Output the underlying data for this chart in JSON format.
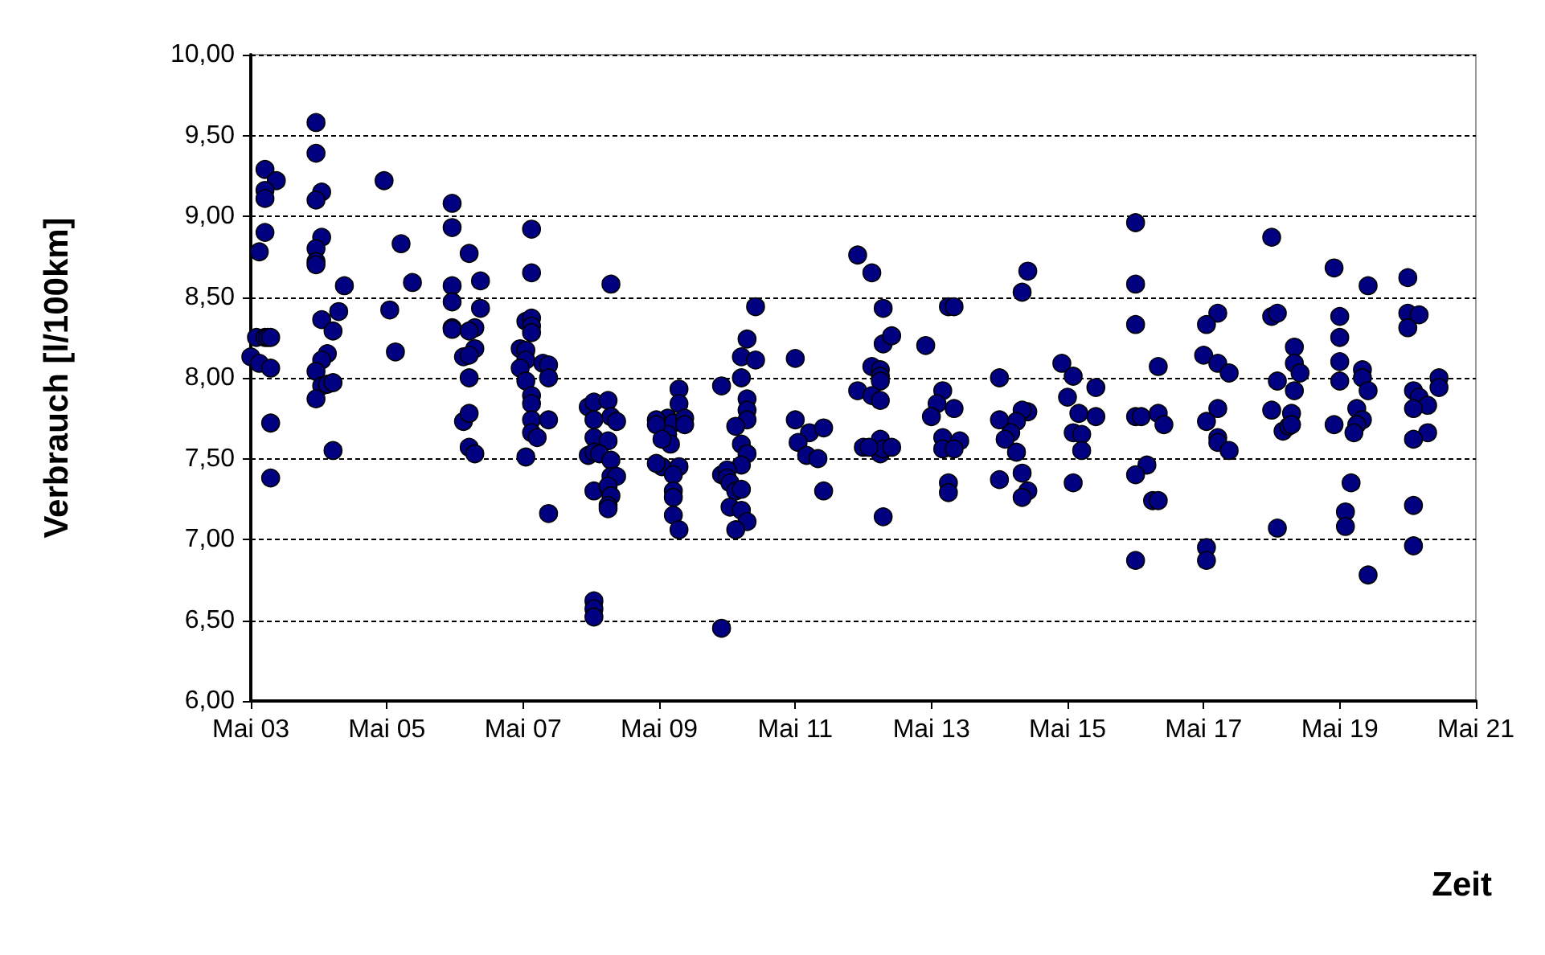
{
  "chart_data": {
    "type": "scatter",
    "xlabel": "Zeit",
    "ylabel": "Verbrauch [l/100km]",
    "marker": "circle",
    "grid": "y",
    "xlim": [
      "--05-03",
      "--05-21"
    ],
    "xticks": [
      {
        "value": "--05-03",
        "label": "Mai 03"
      },
      {
        "value": "--05-05",
        "label": "Mai 05"
      },
      {
        "value": "--05-07",
        "label": "Mai 07"
      },
      {
        "value": "--05-09",
        "label": "Mai 09"
      },
      {
        "value": "--05-11",
        "label": "Mai 11"
      },
      {
        "value": "--05-13",
        "label": "Mai 13"
      },
      {
        "value": "--05-15",
        "label": "Mai 15"
      },
      {
        "value": "--05-17",
        "label": "Mai 17"
      },
      {
        "value": "--05-19",
        "label": "Mai 19"
      },
      {
        "value": "--05-21",
        "label": "Mai 21"
      }
    ],
    "ylim": [
      6,
      10
    ],
    "yticks": [
      {
        "value": 6,
        "label": "6,00"
      },
      {
        "value": 6.5,
        "label": "6,50"
      },
      {
        "value": 7,
        "label": "7,00"
      },
      {
        "value": 7.5,
        "label": "7,50"
      },
      {
        "value": 8,
        "label": "8,00"
      },
      {
        "value": 8.5,
        "label": "8,50"
      },
      {
        "value": 9,
        "label": "9,00"
      },
      {
        "value": 9.5,
        "label": "9,50"
      },
      {
        "value": 10,
        "label": "10,00"
      }
    ],
    "series": [
      {
        "color": "#000080",
        "x": [
          "--05-03T05:00",
          "--05-03T09:00",
          "--05-03T05:00",
          "--05-03T05:00",
          "--05-03T05:00",
          "--05-03T03:00",
          "--05-03T02:00",
          "--05-03T05:00",
          "--05-03T06:00",
          "--05-03T07:00",
          "--05-03T00:00",
          "--05-03T03:00",
          "--05-03T07:00",
          "--05-03T07:00",
          "--05-03T07:00",
          "--05-03T23:00",
          "--05-03T23:00",
          "--05-04T01:00",
          "--05-03T23:00",
          "--05-04T01:00",
          "--05-03T23:00",
          "--05-03T23:00",
          "--05-03T23:00",
          "--05-04T09:00",
          "--05-04T07:00",
          "--05-04T01:00",
          "--05-04T05:00",
          "--05-04T03:00",
          "--05-04T01:00",
          "--05-03T23:00",
          "--05-04T01:00",
          "--05-04T03:00",
          "--05-04T05:00",
          "--05-03T23:00",
          "--05-04T05:00",
          "--05-04T23:00",
          "--05-05T05:00",
          "--05-05T09:00",
          "--05-05T01:00",
          "--05-05T03:00",
          "--05-05T23:00",
          "--05-05T23:00",
          "--05-06T05:00",
          "--05-05T23:00",
          "--05-06T09:00",
          "--05-05T23:00",
          "--05-06T09:00",
          "--05-05T23:00",
          "--05-05T23:00",
          "--05-06T07:00",
          "--05-06T05:00",
          "--05-06T07:00",
          "--05-06T03:00",
          "--05-06T05:00",
          "--05-06T05:00",
          "--05-06T03:00",
          "--05-06T05:00",
          "--05-06T05:00",
          "--05-06T07:00",
          "--05-07T03:00",
          "--05-07T03:00",
          "--05-07T01:00",
          "--05-07T03:00",
          "--05-07T03:00",
          "--05-07T03:00",
          "--05-06T23:00",
          "--05-07T01:00",
          "--05-07T01:00",
          "--05-07T07:00",
          "--05-07T09:00",
          "--05-06T23:00",
          "--05-07T01:00",
          "--05-07T09:00",
          "--05-07T03:00",
          "--05-07T03:00",
          "--05-07T03:00",
          "--05-07T09:00",
          "--05-07T03:00",
          "--05-07T05:00",
          "--05-07T01:00",
          "--05-07T09:00",
          "--05-08T07:00",
          "--05-07T23:00",
          "--05-08T01:00",
          "--05-08T06:00",
          "--05-08T07:00",
          "--05-08T09:00",
          "--05-08T01:00",
          "--05-08T01:00",
          "--05-08T06:00",
          "--05-07T23:00",
          "--05-08T01:00",
          "--05-08T03:00",
          "--05-08T07:00",
          "--05-08T07:00",
          "--05-08T09:00",
          "--05-08T01:00",
          "--05-08T06:00",
          "--05-08T07:00",
          "--05-08T06:00",
          "--05-08T06:00",
          "--05-08T01:00",
          "--05-08T01:00",
          "--05-08T01:00",
          "--05-09T03:00",
          "--05-09T05:00",
          "--05-09T07:00",
          "--05-09T07:00",
          "--05-09T09:00",
          "--05-09T09:00",
          "--05-09T03:00",
          "--05-09T04:00",
          "--05-09T01:00",
          "--05-09T07:00",
          "--05-09T05:00",
          "--05-09T05:00",
          "--05-09T05:00",
          "--05-09T05:00",
          "--05-09T07:00",
          "--05-08T23:00",
          "--05-08T23:00",
          "--05-09T01:00",
          "--05-08T23:00",
          "--05-10T10:00",
          "--05-10T07:00",
          "--05-10T05:00",
          "--05-10T10:00",
          "--05-10T05:00",
          "--05-09T22:00",
          "--05-10T07:00",
          "--05-10T07:00",
          "--05-10T07:00",
          "--05-10T03:00",
          "--05-10T05:00",
          "--05-10T07:00",
          "--05-10T05:00",
          "--05-09T22:00",
          "--05-10T00:00",
          "--05-10T00:00",
          "--05-10T01:00",
          "--05-10T03:00",
          "--05-10T05:00",
          "--05-10T01:00",
          "--05-10T05:00",
          "--05-10T07:00",
          "--05-10T03:00",
          "--05-09T22:00",
          "--05-11T00:00",
          "--05-11T00:00",
          "--05-11T05:00",
          "--05-11T10:00",
          "--05-11T01:00",
          "--05-11T04:00",
          "--05-11T08:00",
          "--05-11T10:00",
          "--05-11T22:00",
          "--05-12T03:00",
          "--05-11T22:00",
          "--05-12T00:00",
          "--05-12T07:00",
          "--05-12T07:00",
          "--05-12T10:00",
          "--05-12T03:00",
          "--05-12T06:00",
          "--05-12T06:00",
          "--05-12T06:00",
          "--05-12T03:00",
          "--05-12T06:00",
          "--05-12T06:00",
          "--05-12T06:00",
          "--05-12T07:00",
          "--05-12T10:00",
          "--05-12T02:00",
          "--05-12T07:00",
          "--05-12T22:00",
          "--05-13T06:00",
          "--05-13T08:00",
          "--05-13T04:00",
          "--05-13T02:00",
          "--05-13T08:00",
          "--05-13T00:00",
          "--05-13T04:00",
          "--05-13T10:00",
          "--05-13T04:00",
          "--05-13T08:00",
          "--05-13T06:00",
          "--05-13T06:00",
          "--05-14T10:00",
          "--05-14T08:00",
          "--05-14T00:00",
          "--05-14T10:00",
          "--05-14T08:00",
          "--05-14T06:00",
          "--05-14T04:00",
          "--05-14T00:00",
          "--05-14T02:00",
          "--05-14T06:00",
          "--05-14T00:00",
          "--05-14T08:00",
          "--05-14T10:00",
          "--05-14T08:00",
          "--05-14T22:00",
          "--05-15T02:00",
          "--05-15T00:00",
          "--05-15T04:00",
          "--05-15T02:00",
          "--05-15T05:00",
          "--05-15T05:00",
          "--05-15T02:00",
          "--05-15T10:00",
          "--05-15T10:00",
          "--05-16T00:00",
          "--05-16T00:00",
          "--05-16T00:00",
          "--05-16T08:00",
          "--05-16T00:00",
          "--05-16T02:00",
          "--05-16T08:00",
          "--05-16T10:00",
          "--05-16T04:00",
          "--05-16T00:00",
          "--05-16T06:00",
          "--05-16T08:00",
          "--05-16T00:00",
          "--05-17T05:00",
          "--05-17T01:00",
          "--05-17T00:00",
          "--05-17T05:00",
          "--05-17T09:00",
          "--05-17T05:00",
          "--05-17T01:00",
          "--05-17T05:00",
          "--05-17T05:00",
          "--05-17T09:00",
          "--05-17T01:00",
          "--05-17T01:00",
          "--05-18T00:00",
          "--05-18T00:00",
          "--05-18T02:00",
          "--05-18T02:00",
          "--05-18T00:00",
          "--05-18T04:00",
          "--05-18T06:00",
          "--05-18T02:00",
          "--05-18T08:00",
          "--05-18T08:00",
          "--05-18T10:00",
          "--05-18T08:00",
          "--05-18T07:00",
          "--05-18T07:00",
          "--05-18T22:00",
          "--05-19T00:00",
          "--05-19T00:00",
          "--05-19T00:00",
          "--05-19T00:00",
          "--05-18T22:00",
          "--05-19T10:00",
          "--05-19T08:00",
          "--05-19T08:00",
          "--05-19T10:00",
          "--05-19T06:00",
          "--05-19T08:00",
          "--05-19T06:00",
          "--05-19T05:00",
          "--05-19T04:00",
          "--05-19T02:00",
          "--05-19T02:00",
          "--05-19T10:00",
          "--05-20T00:00",
          "--05-20T00:00",
          "--05-20T04:00",
          "--05-20T00:00",
          "--05-20T02:00",
          "--05-20T04:00",
          "--05-20T07:00",
          "--05-20T02:00",
          "--05-20T11:00",
          "--05-20T11:00",
          "--05-20T07:00",
          "--05-20T02:00",
          "--05-20T02:00",
          "--05-20T02:00"
        ],
        "values": [
          9.29,
          9.22,
          9.16,
          9.11,
          8.9,
          8.78,
          8.25,
          8.25,
          8.25,
          8.25,
          8.13,
          8.09,
          8.06,
          7.72,
          7.38,
          9.58,
          9.39,
          9.15,
          9.1,
          8.87,
          8.8,
          8.72,
          8.7,
          8.57,
          8.41,
          8.36,
          8.29,
          8.15,
          8.11,
          8.04,
          7.95,
          7.96,
          7.97,
          7.87,
          7.55,
          9.22,
          8.83,
          8.59,
          8.42,
          8.16,
          9.08,
          8.93,
          8.77,
          8.57,
          8.6,
          8.47,
          8.43,
          8.31,
          8.3,
          8.31,
          8.29,
          8.18,
          8.13,
          8.14,
          8.0,
          7.73,
          7.78,
          7.57,
          7.53,
          8.92,
          8.65,
          8.35,
          8.37,
          8.32,
          8.28,
          8.18,
          8.17,
          8.11,
          8.09,
          8.08,
          8.06,
          7.98,
          8.0,
          7.89,
          7.84,
          7.74,
          7.74,
          7.66,
          7.63,
          7.51,
          7.16,
          8.58,
          7.82,
          7.85,
          7.86,
          7.76,
          7.73,
          7.74,
          7.63,
          7.61,
          7.52,
          7.54,
          7.53,
          7.49,
          7.39,
          7.39,
          7.3,
          7.33,
          7.27,
          7.21,
          7.19,
          6.62,
          6.57,
          6.52,
          7.75,
          7.72,
          7.93,
          7.84,
          7.75,
          7.71,
          7.65,
          7.59,
          7.45,
          7.45,
          7.4,
          7.3,
          7.26,
          7.15,
          7.06,
          7.74,
          7.71,
          7.62,
          7.47,
          8.44,
          8.24,
          8.13,
          8.11,
          8.0,
          7.95,
          7.87,
          7.8,
          7.74,
          7.7,
          7.59,
          7.53,
          7.46,
          7.4,
          7.43,
          7.38,
          7.35,
          7.3,
          7.31,
          7.2,
          7.18,
          7.11,
          7.06,
          6.45,
          8.12,
          7.74,
          7.66,
          7.69,
          7.6,
          7.52,
          7.5,
          7.3,
          8.76,
          8.65,
          7.92,
          7.57,
          8.43,
          8.21,
          8.26,
          8.07,
          8.05,
          8.01,
          7.98,
          7.89,
          7.86,
          7.62,
          7.53,
          7.56,
          7.57,
          7.57,
          7.14,
          8.2,
          8.44,
          8.44,
          7.92,
          7.84,
          7.81,
          7.76,
          7.63,
          7.61,
          7.56,
          7.56,
          7.35,
          7.29,
          8.66,
          8.53,
          8.0,
          7.79,
          7.8,
          7.73,
          7.66,
          7.74,
          7.62,
          7.54,
          7.37,
          7.41,
          7.3,
          7.26,
          8.09,
          8.01,
          7.88,
          7.78,
          7.66,
          7.65,
          7.55,
          7.35,
          7.94,
          7.76,
          8.96,
          8.58,
          8.33,
          8.07,
          7.76,
          7.76,
          7.78,
          7.71,
          7.46,
          7.4,
          7.24,
          7.24,
          6.87,
          8.4,
          8.33,
          8.14,
          8.09,
          8.03,
          7.81,
          7.73,
          7.63,
          7.6,
          7.55,
          6.95,
          6.87,
          8.87,
          8.38,
          8.4,
          7.98,
          7.8,
          7.67,
          7.7,
          7.07,
          8.19,
          8.09,
          8.03,
          7.92,
          7.78,
          7.71,
          8.68,
          8.38,
          8.25,
          8.1,
          7.98,
          7.71,
          8.57,
          8.05,
          8.0,
          7.92,
          7.81,
          7.74,
          7.71,
          7.66,
          7.35,
          7.17,
          7.08,
          6.78,
          8.62,
          8.4,
          8.39,
          8.31,
          7.92,
          7.88,
          7.83,
          7.81,
          8.0,
          7.94,
          7.66,
          7.62,
          7.21,
          6.96
        ]
      }
    ]
  }
}
